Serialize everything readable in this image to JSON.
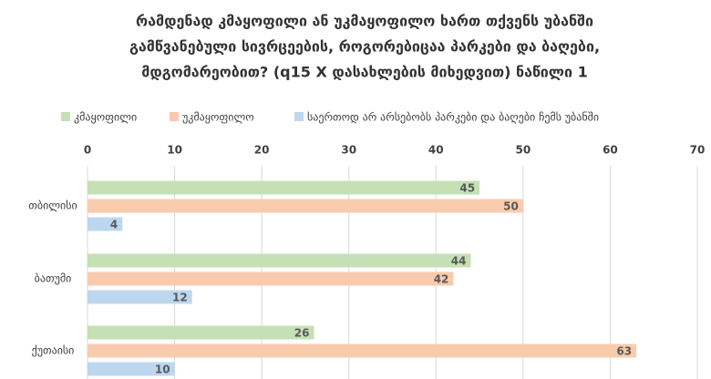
{
  "chart_data": {
    "type": "hbar",
    "title": [
      "რამდენად კმაყოფილი ან უკმაყოფილო ხართ თქვენს უბანში",
      "გამწვანებული სივრცეების, როგორებიცაა პარკები და ბაღები,",
      "მდგომარეობით? (q15 X დასახლების მიხედვით) ნაწილი 1"
    ],
    "categories": [
      "თბილისი",
      "ბათუმი",
      "ქუთაისი"
    ],
    "series": [
      {
        "name": "კმაყოფილი",
        "color": "#c5e0b4",
        "values": [
          45,
          44,
          26
        ]
      },
      {
        "name": "უკმაყოფილო",
        "color": "#f8cbad",
        "values": [
          50,
          42,
          63
        ]
      },
      {
        "name": "საერთოდ არ არსებობს პარკები და ბაღები ჩემს უბანში",
        "color": "#bdd7ee",
        "values": [
          4,
          12,
          10
        ]
      }
    ],
    "xlim": [
      0,
      70
    ],
    "xticks": [
      0,
      10,
      20,
      30,
      40,
      50,
      60,
      70
    ],
    "grid": true
  }
}
